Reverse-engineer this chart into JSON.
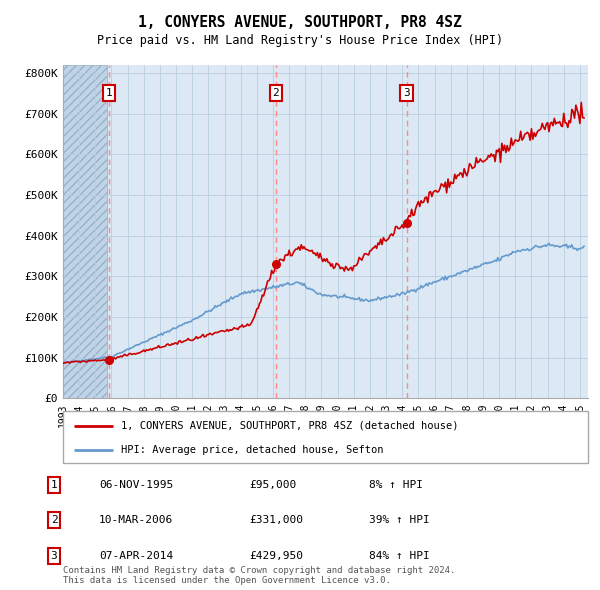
{
  "title1": "1, CONYERS AVENUE, SOUTHPORT, PR8 4SZ",
  "title2": "Price paid vs. HM Land Registry's House Price Index (HPI)",
  "ylabel_ticks": [
    "£0",
    "£100K",
    "£200K",
    "£300K",
    "£400K",
    "£500K",
    "£600K",
    "£700K",
    "£800K"
  ],
  "ytick_vals": [
    0,
    100000,
    200000,
    300000,
    400000,
    500000,
    600000,
    700000,
    800000
  ],
  "ylim": [
    0,
    820000
  ],
  "xlim_start": 1993.0,
  "xlim_end": 2025.5,
  "hatch_end": 1995.75,
  "sales": [
    {
      "year": 1995.85,
      "price": 95000,
      "label": "1"
    },
    {
      "year": 2006.18,
      "price": 331000,
      "label": "2"
    },
    {
      "year": 2014.27,
      "price": 429950,
      "label": "3"
    }
  ],
  "legend_line1": "1, CONYERS AVENUE, SOUTHPORT, PR8 4SZ (detached house)",
  "legend_line2": "HPI: Average price, detached house, Sefton",
  "table_rows": [
    {
      "num": "1",
      "date": "06-NOV-1995",
      "price": "£95,000",
      "pct": "8% ↑ HPI"
    },
    {
      "num": "2",
      "date": "10-MAR-2006",
      "price": "£331,000",
      "pct": "39% ↑ HPI"
    },
    {
      "num": "3",
      "date": "07-APR-2014",
      "price": "£429,950",
      "pct": "84% ↑ HPI"
    }
  ],
  "footer": "Contains HM Land Registry data © Crown copyright and database right 2024.\nThis data is licensed under the Open Government Licence v3.0.",
  "line_color_red": "#cc0000",
  "line_color_blue": "#6699cc",
  "bg_plot": "#dce9f5",
  "bg_hatch": "#c0d4e8",
  "grid_color": "#b8cfe0",
  "vline_color": "#ff8888",
  "dot_color": "#cc0000",
  "box_color": "#cc0000"
}
